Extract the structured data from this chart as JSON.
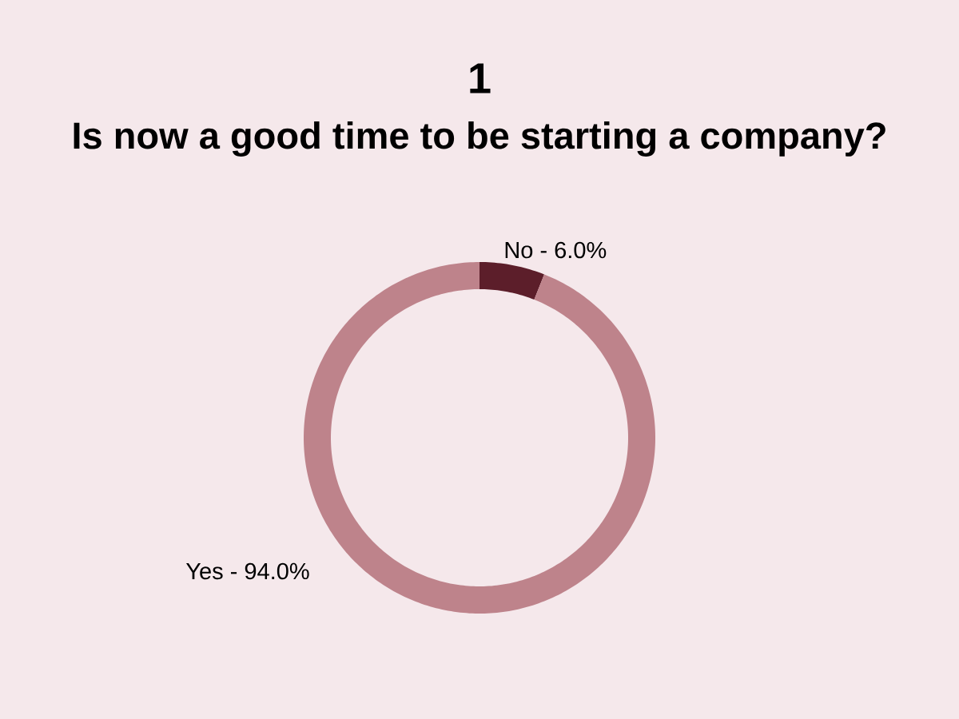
{
  "chart_data": {
    "type": "donut",
    "title": "1",
    "subtitle": "Is now a good time to be starting a company?",
    "categories": [
      "No",
      "Yes"
    ],
    "values": [
      6.0,
      94.0
    ],
    "colors": [
      "#5c1e2a",
      "#be838b"
    ],
    "value_labels": [
      "6.0%",
      "94.0%"
    ],
    "annotations": [
      "-",
      "-"
    ]
  }
}
